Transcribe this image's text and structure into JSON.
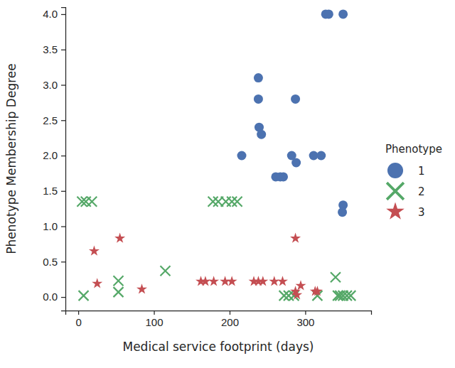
{
  "chart_data": {
    "type": "scatter",
    "x_label": "Medical service footprint (days)",
    "y_label": "Phenotype Membership Degree",
    "legend_title": "Phenotype",
    "legend": "right",
    "grid": false,
    "xlim": [
      -17,
      387
    ],
    "xticks": [
      0,
      100,
      200,
      300
    ],
    "ylim": [
      -0.19,
      4.1
    ],
    "yticks": [
      {
        "value": 0,
        "label": "0.0"
      },
      {
        "value": 0.5,
        "label": "0.5"
      },
      {
        "value": 1,
        "label": "1.0"
      },
      {
        "value": 1.5,
        "label": "1.5"
      },
      {
        "value": 2,
        "label": "2.0"
      },
      {
        "value": 2.5,
        "label": "2.5"
      },
      {
        "value": 3,
        "label": "3.0"
      },
      {
        "value": 3.5,
        "label": "3.5"
      },
      {
        "value": 4,
        "label": "4.0"
      }
    ],
    "series": [
      {
        "name": "1",
        "color": "#4c72b0",
        "marker": "circle",
        "x": [
          327,
          331,
          350,
          238,
          238,
          239,
          242,
          216,
          287,
          282,
          288,
          311,
          321,
          261,
          267,
          271,
          350,
          349
        ],
        "values": [
          4.0,
          4.0,
          4.0,
          3.1,
          2.8,
          2.4,
          2.3,
          2.0,
          2.8,
          2.0,
          1.9,
          2.0,
          2.0,
          1.7,
          1.7,
          1.7,
          1.3,
          1.2
        ]
      },
      {
        "name": "2",
        "color": "#55a868",
        "marker": "x",
        "x": [
          5,
          10,
          18,
          7,
          53,
          53,
          115,
          178,
          185,
          195,
          203,
          210,
          272,
          278,
          285,
          316,
          340,
          343,
          346,
          350,
          355,
          360
        ],
        "values": [
          1.35,
          1.35,
          1.35,
          0.02,
          0.23,
          0.07,
          0.37,
          1.35,
          1.35,
          1.35,
          1.35,
          1.35,
          0.02,
          0.02,
          0.02,
          0.02,
          0.28,
          0.02,
          0.02,
          0.02,
          0.02,
          0.02
        ]
      },
      {
        "name": "3",
        "color": "#c44e52",
        "marker": "star",
        "x": [
          21,
          25,
          55,
          84,
          162,
          168,
          179,
          194,
          203,
          232,
          238,
          244,
          259,
          270,
          287,
          287,
          289,
          294,
          313,
          316
        ],
        "values": [
          0.65,
          0.19,
          0.83,
          0.11,
          0.22,
          0.22,
          0.22,
          0.22,
          0.22,
          0.22,
          0.22,
          0.22,
          0.22,
          0.22,
          0.83,
          0.08,
          0.03,
          0.16,
          0.08,
          0.08
        ]
      }
    ]
  }
}
